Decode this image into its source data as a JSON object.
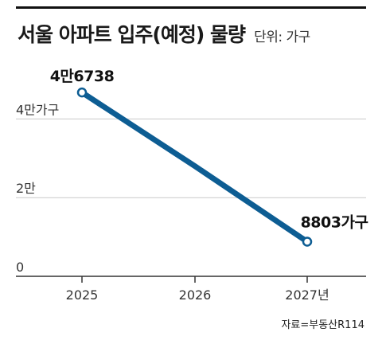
{
  "header": {
    "title": "서울 아파트 입주(예정) 물량",
    "unit_label": "단위: 가구"
  },
  "source": "자료=부동산R114",
  "chart_data": {
    "type": "line",
    "x": [
      2025,
      2026,
      2027
    ],
    "xlabels": [
      "2025",
      "2026",
      "2027년"
    ],
    "series": [
      {
        "values": [
          46738,
          28000,
          8803
        ],
        "color": "#0d5d93"
      }
    ],
    "data_labels": [
      "4만6738",
      "",
      "8803가구"
    ],
    "yticks": [
      {
        "value": 0,
        "label": "0"
      },
      {
        "value": 20000,
        "label": "2만"
      },
      {
        "value": 40000,
        "label": "4만가구"
      }
    ],
    "ylim": [
      0,
      50000
    ],
    "grid": true,
    "legend": "none"
  }
}
